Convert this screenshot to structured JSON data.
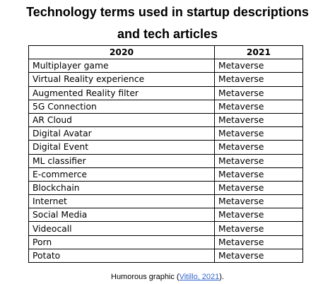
{
  "title": {
    "line1": "Technology terms used in startup descriptions",
    "line2": "and tech articles"
  },
  "table": {
    "headers": [
      "2020",
      "2021"
    ],
    "rows": [
      [
        "Multiplayer game",
        "Metaverse"
      ],
      [
        "Virtual Reality experience",
        "Metaverse"
      ],
      [
        "Augmented Reality filter",
        "Metaverse"
      ],
      [
        "5G Connection",
        "Metaverse"
      ],
      [
        "AR Cloud",
        "Metaverse"
      ],
      [
        "Digital Avatar",
        "Metaverse"
      ],
      [
        "Digital Event",
        "Metaverse"
      ],
      [
        "ML classifier",
        "Metaverse"
      ],
      [
        "E-commerce",
        "Metaverse"
      ],
      [
        "Blockchain",
        "Metaverse"
      ],
      [
        "Internet",
        "Metaverse"
      ],
      [
        "Social Media",
        "Metaverse"
      ],
      [
        "Videocall",
        "Metaverse"
      ],
      [
        "Porn",
        "Metaverse"
      ],
      [
        "Potato",
        "Metaverse"
      ]
    ]
  },
  "caption": {
    "prefix": "Humorous graphic (",
    "link_text": "Vitillo, 2021",
    "suffix": ")."
  }
}
